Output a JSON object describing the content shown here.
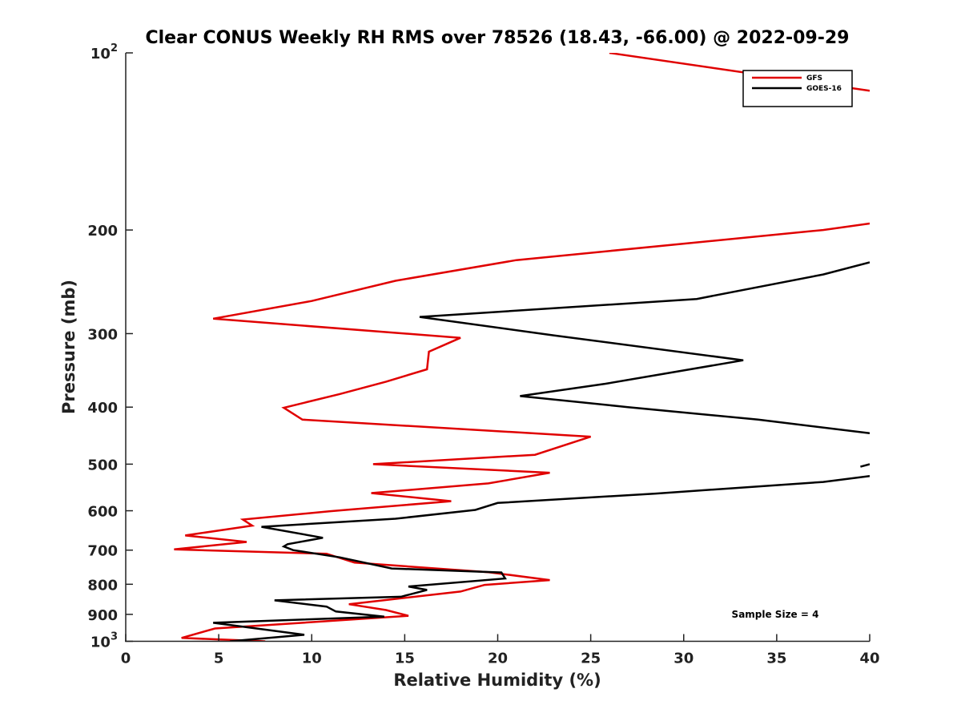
{
  "chart_data": {
    "type": "line",
    "title": "Clear CONUS Weekly RH RMS over 78526 (18.43, -66.00) @ 2022-09-29",
    "xlabel": "Relative Humidity (%)",
    "ylabel": "Pressure (mb)",
    "xlim": [
      0,
      40
    ],
    "ylim": [
      100,
      1000
    ],
    "yscale": "log",
    "y_reversed": true,
    "grid": false,
    "legend_placement": "top-right",
    "x_ticks": [
      "0",
      "5",
      "10",
      "15",
      "20",
      "25",
      "30",
      "35",
      "40"
    ],
    "y_ticks": [
      {
        "value": 100,
        "base": "10",
        "exp": "2"
      },
      {
        "value": 200,
        "label": "200"
      },
      {
        "value": 300,
        "label": "300"
      },
      {
        "value": 400,
        "label": "400"
      },
      {
        "value": 500,
        "label": "500"
      },
      {
        "value": 600,
        "label": "600"
      },
      {
        "value": 700,
        "label": "700"
      },
      {
        "value": 800,
        "label": "800"
      },
      {
        "value": 900,
        "label": "900"
      },
      {
        "value": 1000,
        "base": "10",
        "exp": "3"
      }
    ],
    "annotation": "Sample Size = 4",
    "series": [
      {
        "name": "GFS",
        "color": "#e00000",
        "points": [
          [
            26.0,
            100
          ],
          [
            40.0,
            116
          ],
          null,
          [
            40.0,
            195
          ],
          [
            37.5,
            200
          ],
          [
            21.0,
            225
          ],
          [
            14.5,
            244
          ],
          [
            10.0,
            264
          ],
          [
            4.7,
            283
          ],
          [
            18.0,
            305
          ],
          [
            16.3,
            322
          ],
          [
            16.2,
            345
          ],
          [
            14.0,
            362
          ],
          [
            11.5,
            380
          ],
          [
            8.5,
            401
          ],
          [
            9.5,
            420
          ],
          [
            25.0,
            449
          ],
          [
            22.0,
            482
          ],
          [
            13.3,
            500
          ],
          [
            22.8,
            517
          ],
          [
            19.5,
            539
          ],
          [
            13.2,
            560
          ],
          [
            17.5,
            578
          ],
          [
            11.0,
            601
          ],
          [
            6.3,
            621
          ],
          [
            6.8,
            636
          ],
          [
            3.2,
            661
          ],
          [
            6.5,
            678
          ],
          [
            2.6,
            698
          ],
          [
            10.8,
            710
          ],
          [
            12.3,
            735
          ],
          [
            19.5,
            763
          ],
          [
            22.8,
            787
          ],
          [
            19.3,
            802
          ],
          [
            18.0,
            823
          ],
          [
            12.0,
            865
          ],
          [
            14.0,
            885
          ],
          [
            15.2,
            905
          ],
          [
            4.8,
            951
          ],
          [
            3.0,
            987
          ],
          [
            7.5,
            1000
          ]
        ]
      },
      {
        "name": "GOES-16",
        "color": "#000000",
        "points": [
          [
            40.0,
            227
          ],
          [
            37.5,
            238
          ],
          [
            30.7,
            262
          ],
          [
            15.8,
            281
          ],
          [
            23.0,
            302
          ],
          [
            33.2,
            333
          ],
          [
            25.8,
            365
          ],
          [
            21.2,
            383
          ],
          [
            27.0,
            400
          ],
          [
            34.0,
            420
          ],
          [
            40.0,
            443
          ],
          null,
          [
            40.0,
            500
          ],
          [
            39.5,
            505
          ],
          null,
          [
            40.0,
            524
          ],
          [
            37.5,
            536
          ],
          [
            28.5,
            561
          ],
          [
            20.0,
            582
          ],
          [
            18.8,
            598
          ],
          [
            14.5,
            619
          ],
          [
            7.3,
            639
          ],
          [
            10.6,
            667
          ],
          [
            8.7,
            684
          ],
          [
            8.5,
            690
          ],
          [
            9.0,
            700
          ],
          [
            11.5,
            720
          ],
          [
            14.3,
            752
          ],
          [
            20.2,
            764
          ],
          [
            20.4,
            782
          ],
          [
            15.2,
            807
          ],
          [
            16.2,
            818
          ],
          [
            14.8,
            840
          ],
          [
            8.0,
            852
          ],
          [
            10.8,
            873
          ],
          [
            11.3,
            890
          ],
          [
            13.9,
            908
          ],
          [
            4.7,
            930
          ],
          [
            9.6,
            975
          ],
          [
            5.6,
            1000
          ]
        ]
      }
    ]
  }
}
